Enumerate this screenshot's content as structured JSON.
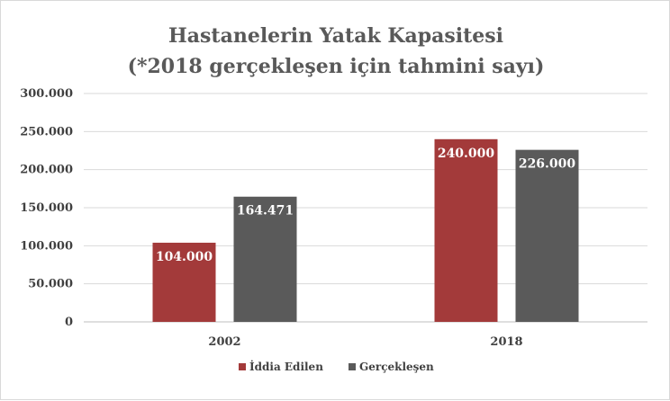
{
  "chart_data": {
    "type": "bar",
    "title_line1": "Hastanelerin Yatak Kapasitesi",
    "title_line2": "(*2018 gerçekleşen için tahmini sayı)",
    "categories": [
      "2002",
      "2018"
    ],
    "series": [
      {
        "name": "İddia Edilen",
        "color": "#a33a3a",
        "values": [
          104000,
          240000
        ],
        "labels": [
          "104.000",
          "240.000"
        ]
      },
      {
        "name": "Gerçekleşen",
        "color": "#5a5a5a",
        "values": [
          164471,
          226000
        ],
        "labels": [
          "164.471",
          "226.000"
        ]
      }
    ],
    "ylim": [
      0,
      300000
    ],
    "yticks": [
      0,
      50000,
      100000,
      150000,
      200000,
      250000,
      300000
    ],
    "ytick_labels": [
      "0",
      "50.000",
      "100.000",
      "150.000",
      "200.000",
      "250.000",
      "300.000"
    ],
    "grid": true,
    "legend": "bottom"
  }
}
